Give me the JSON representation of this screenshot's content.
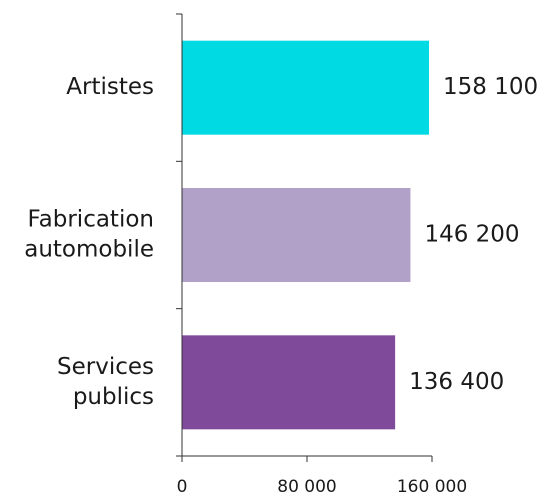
{
  "chart_data": {
    "type": "bar",
    "orientation": "horizontal",
    "categories": [
      [
        "Artistes"
      ],
      [
        "Fabrication",
        "automobile"
      ],
      [
        "Services",
        "publics"
      ]
    ],
    "values": [
      158100,
      146200,
      136400
    ],
    "value_labels": [
      "158 100",
      "146 200",
      "136 400"
    ],
    "colors": [
      "#00dae2",
      "#b1a1c9",
      "#7f4a9a"
    ],
    "x_ticks": [
      {
        "value": 0,
        "label": "0"
      },
      {
        "value": 80000,
        "label": "80 000"
      },
      {
        "value": 160000,
        "label": "160 000"
      }
    ],
    "xlim": [
      0,
      160000
    ],
    "grid": false,
    "legend": "none",
    "title": "",
    "xlabel": "",
    "ylabel": ""
  }
}
